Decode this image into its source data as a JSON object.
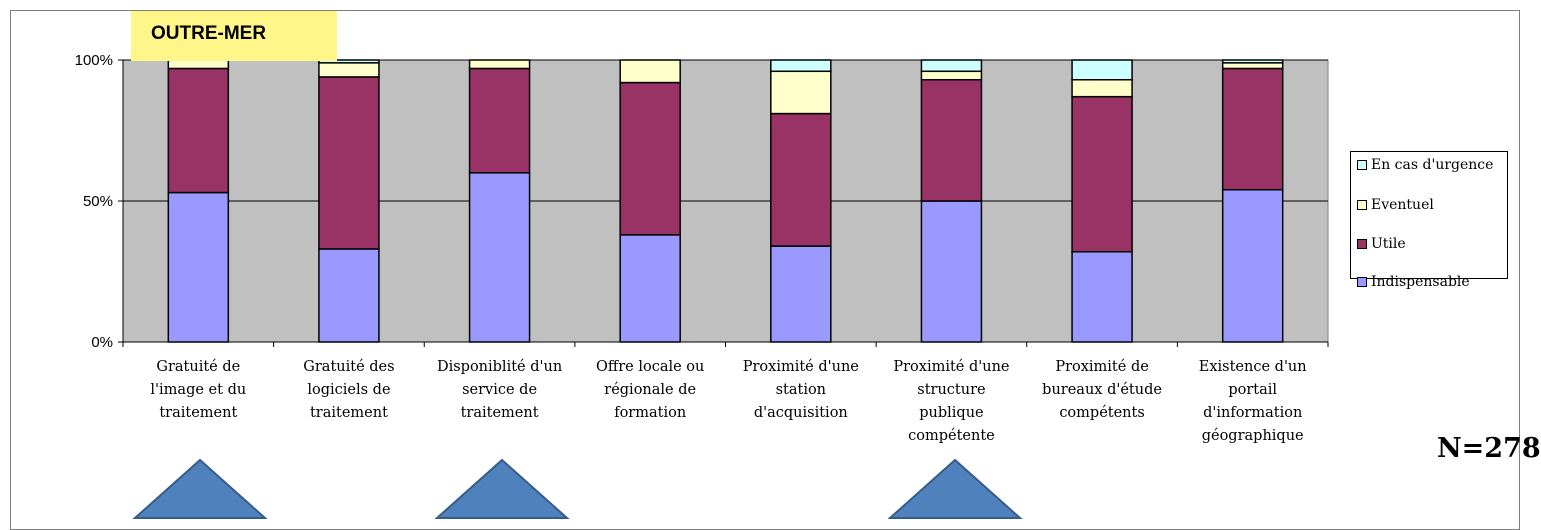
{
  "region_label": "OUTRE-MER",
  "sample_label": "N=278",
  "colors": {
    "plot_background": "#c0c0c0",
    "indispensable": "#9999ff",
    "utile": "#993366",
    "eventuel": "#ffffcc",
    "urgence": "#ccffff",
    "arrow": "#4f81bd"
  },
  "chart_data": {
    "type": "bar",
    "stacked": true,
    "percent": true,
    "ylim": [
      0,
      100
    ],
    "yticks": [
      "0%",
      "50%",
      "100%"
    ],
    "grid": true,
    "legend_position": "right",
    "categories": [
      [
        "Gratuité de",
        "l'image et du",
        "traitement"
      ],
      [
        "Gratuité des",
        "logiciels de",
        "traitement"
      ],
      [
        "Disponiblité d'un",
        "service de",
        "traitement"
      ],
      [
        "Offre locale ou",
        "régionale de",
        "formation"
      ],
      [
        "Proximité d'une",
        "station",
        "d'acquisition"
      ],
      [
        "Proximité d'une",
        "structure",
        "publique",
        "compétente"
      ],
      [
        "Proximité de",
        "bureaux d'étude",
        "compétents"
      ],
      [
        "Existence d'un",
        "portail",
        "d'information",
        "géographique"
      ]
    ],
    "series": [
      {
        "name": "Indispensable",
        "values": [
          53,
          33,
          60,
          38,
          34,
          50,
          32,
          54
        ]
      },
      {
        "name": "Utile",
        "values": [
          44,
          61,
          37,
          54,
          47,
          43,
          55,
          43
        ]
      },
      {
        "name": "Eventuel",
        "values": [
          3,
          5,
          3,
          8,
          15,
          3,
          6,
          2
        ]
      },
      {
        "name": "En cas d'urgence",
        "values": [
          0,
          1,
          0,
          0,
          4,
          4,
          7,
          1
        ]
      }
    ],
    "legend_order": [
      "En cas d'urgence",
      "Eventuel",
      "Utile",
      "Indispensable"
    ]
  }
}
